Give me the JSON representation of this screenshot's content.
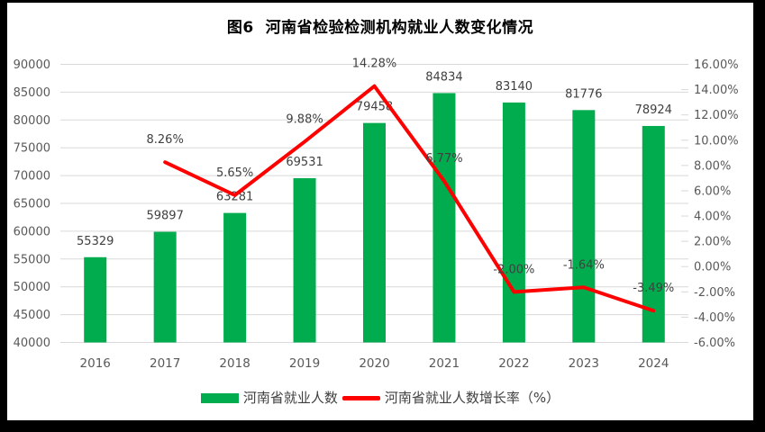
{
  "title": "图6  河南省检验检测机构就业人数变化情况",
  "legend": {
    "bar_label": "河南省就业人数",
    "line_label": "河南省就业人数增长率（%）"
  },
  "colors": {
    "bar": "#00AC4E",
    "line": "#FF0000",
    "grid": "#D9D9D9",
    "axis_text": "#595959",
    "data_label": "#404040",
    "title_text": "#000000",
    "frame": "#000000",
    "background": "#FFFFFF"
  },
  "chart_data": {
    "type": "bar+line",
    "title": "图6  河南省检验检测机构就业人数变化情况",
    "categories": [
      "2016",
      "2017",
      "2018",
      "2019",
      "2020",
      "2021",
      "2022",
      "2023",
      "2024"
    ],
    "series": [
      {
        "name": "河南省就业人数",
        "type": "bar",
        "axis": "primary",
        "values": [
          55329,
          59897,
          63281,
          69531,
          79458,
          84834,
          83140,
          81776,
          78924
        ],
        "data_labels": [
          "55329",
          "59897",
          "63281",
          "69531",
          "79458",
          "84834",
          "83140",
          "81776",
          "78924"
        ]
      },
      {
        "name": "河南省就业人数增长率（%）",
        "type": "line",
        "axis": "secondary",
        "values": [
          null,
          8.26,
          5.65,
          9.88,
          14.28,
          6.77,
          -2.0,
          -1.64,
          -3.49
        ],
        "data_labels": [
          null,
          "8.26%",
          "5.65%",
          "9.88%",
          "14.28%",
          "6.77%",
          "-2.00%",
          "-1.64%",
          "-3.49%"
        ]
      }
    ],
    "primary_axis": {
      "min": 40000,
      "max": 90000,
      "step": 5000,
      "tick_labels": [
        "90000",
        "85000",
        "80000",
        "75000",
        "70000",
        "65000",
        "60000",
        "55000",
        "50000",
        "45000",
        "40000"
      ]
    },
    "secondary_axis": {
      "min": -6,
      "max": 16,
      "step": 2,
      "tick_labels": [
        "16.00%",
        "14.00%",
        "12.00%",
        "10.00%",
        "8.00%",
        "6.00%",
        "4.00%",
        "2.00%",
        "0.00%",
        "-2.00%",
        "-4.00%",
        "-6.00%"
      ]
    },
    "grid": true,
    "legend_position": "bottom"
  }
}
